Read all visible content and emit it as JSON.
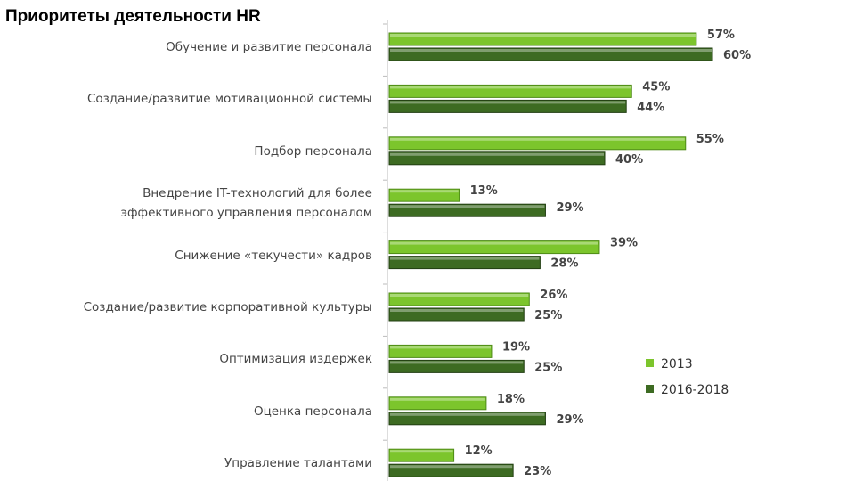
{
  "chart_data": {
    "type": "bar",
    "orientation": "horizontal",
    "title": "Приоритеты деятельности HR",
    "categories": [
      "Обучение и развитие персонала",
      "Создание/развитие мотивационной системы",
      "Подбор персонала",
      "Внедрение IT-технологий для более\nэффективного управления персоналом",
      "Снижение «текучести» кадров",
      "Создание/развитие корпоративной культуры",
      "Оптимизация издержек",
      "Оценка персонала",
      "Управление талантами"
    ],
    "series": [
      {
        "name": "2013",
        "color": "#7cc52c",
        "values": [
          57,
          45,
          55,
          13,
          39,
          26,
          19,
          18,
          12
        ],
        "value_labels": [
          "57%",
          "45%",
          "55%",
          "13%",
          "39%",
          "26%",
          "19%",
          "18%",
          "12%"
        ]
      },
      {
        "name": "2016-2018",
        "color": "#3d6b22",
        "values": [
          60,
          44,
          40,
          29,
          28,
          25,
          25,
          29,
          23
        ],
        "value_labels": [
          "60%",
          "44%",
          "40%",
          "29%",
          "28%",
          "25%",
          "25%",
          "29%",
          "23%"
        ],
        "value_label_colors": [
          null,
          null,
          null,
          "#d0312d",
          null,
          null,
          null,
          null,
          null
        ]
      }
    ]
  }
}
